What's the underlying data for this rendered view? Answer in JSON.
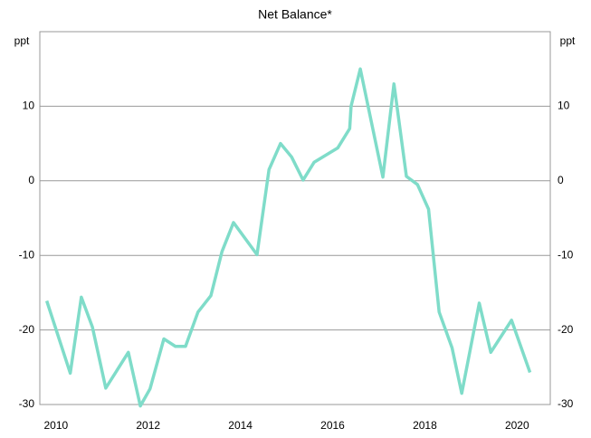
{
  "chart_data": {
    "type": "line",
    "title": "Net Balance*",
    "y_label": "ppt",
    "y2_label": "ppt",
    "x": [
      2009.8,
      2010.31,
      2010.55,
      2010.79,
      2011.08,
      2011.57,
      2011.83,
      2012.04,
      2012.34,
      2012.59,
      2012.81,
      2013.08,
      2013.36,
      2013.6,
      2013.85,
      2014.36,
      2014.62,
      2014.87,
      2015.11,
      2015.36,
      2015.6,
      2016.11,
      2016.37,
      2016.4,
      2016.6,
      2017.09,
      2017.33,
      2017.6,
      2017.84,
      2018.08,
      2018.31,
      2018.59,
      2018.8,
      2019.18,
      2019.43,
      2019.88,
      2020.28
    ],
    "series": [
      {
        "name": "Net Balance",
        "color": "#7fdcc9",
        "values": [
          -16.1,
          -25.8,
          -15.6,
          -19.6,
          -27.8,
          -23,
          -30.2,
          -27.9,
          -21.2,
          -22.2,
          -22.2,
          -17.6,
          -15.4,
          -9.5,
          -5.6,
          -9.9,
          1.5,
          5,
          3.2,
          0.1,
          2.5,
          4.4,
          7,
          10,
          15,
          0.5,
          13,
          0.6,
          -0.5,
          -3.8,
          -17.6,
          -22.4,
          -28.5,
          -16.4,
          -23,
          -18.7,
          -25.7
        ]
      }
    ],
    "xlim": [
      2009.65,
      2020.72
    ],
    "xticks": [
      2010,
      2012,
      2014,
      2016,
      2018,
      2020
    ],
    "ylim": [
      -30,
      20
    ],
    "yticks": [
      -30,
      -20,
      -10,
      0,
      10
    ],
    "y2lim": [
      -30,
      20
    ],
    "y2ticks": [
      -30,
      -20,
      -10,
      0,
      10
    ],
    "grid": true
  }
}
